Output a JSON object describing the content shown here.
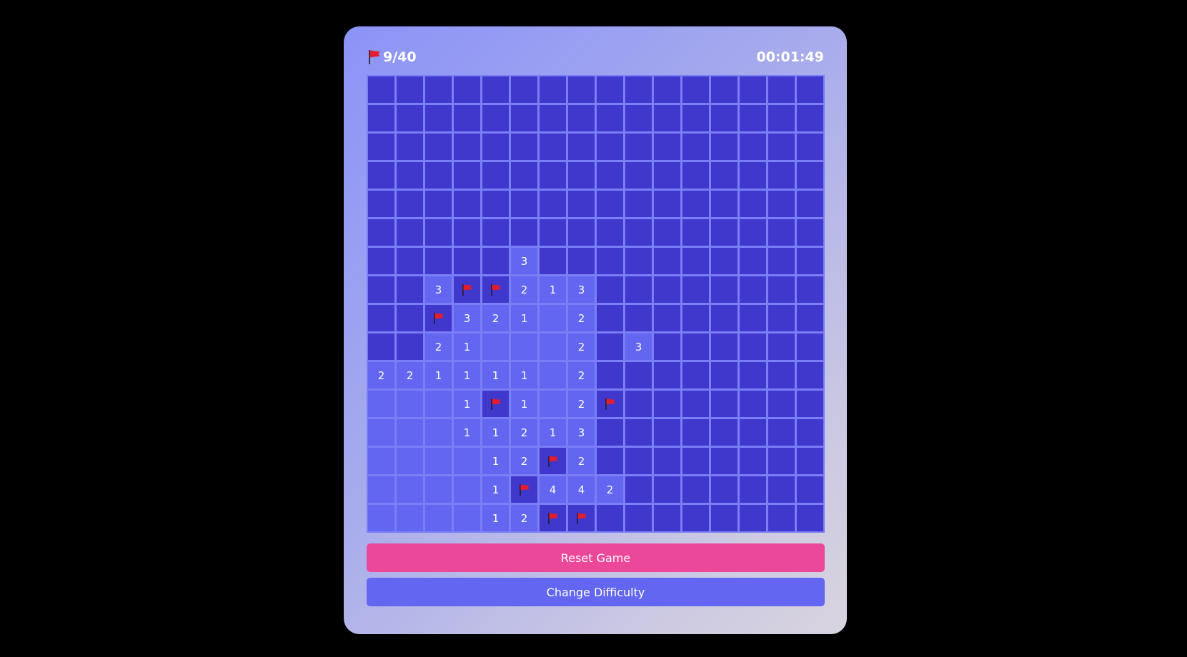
{
  "header": {
    "flag_icon": "red-flag",
    "flags_label": "9/40",
    "timer": "00:01:49"
  },
  "board": {
    "rows": 16,
    "cols": 16,
    "legend": "H = hidden, F = flagged, E = revealed empty, digit = revealed number",
    "grid": [
      "HHHHHHHHHHHHHHHH",
      "HHHHHHHHHHHHHHHH",
      "HHHHHHHHHHHHHHHH",
      "HHHHHHHHHHHHHHHH",
      "HHHHHHHHHHHHHHHH",
      "HHHHHHHHHHHHHHHH",
      "HHHHH3HHHHHHHHHH",
      "HH3FF213HHHHHHHH",
      "HHF321E2HHHHHHHH",
      "HH21EEE2H3HHHHHH",
      "221111E2HHHHHHHH",
      "EEE1F1E2FHHHHHHH",
      "EEE11213HHHHHHHH",
      "EEEE12F2HHHHHHHH",
      "EEEE1F442HHHHHHH",
      "EEEE12FFHHHHHHHH"
    ]
  },
  "buttons": {
    "reset": "Reset Game",
    "change_difficulty": "Change Difficulty"
  },
  "colors": {
    "hidden": "#4037cc",
    "revealed": "#6366f1",
    "reset_button": "#ec4899",
    "difficulty_button": "#6366f1",
    "flag": "#e11d2e"
  }
}
